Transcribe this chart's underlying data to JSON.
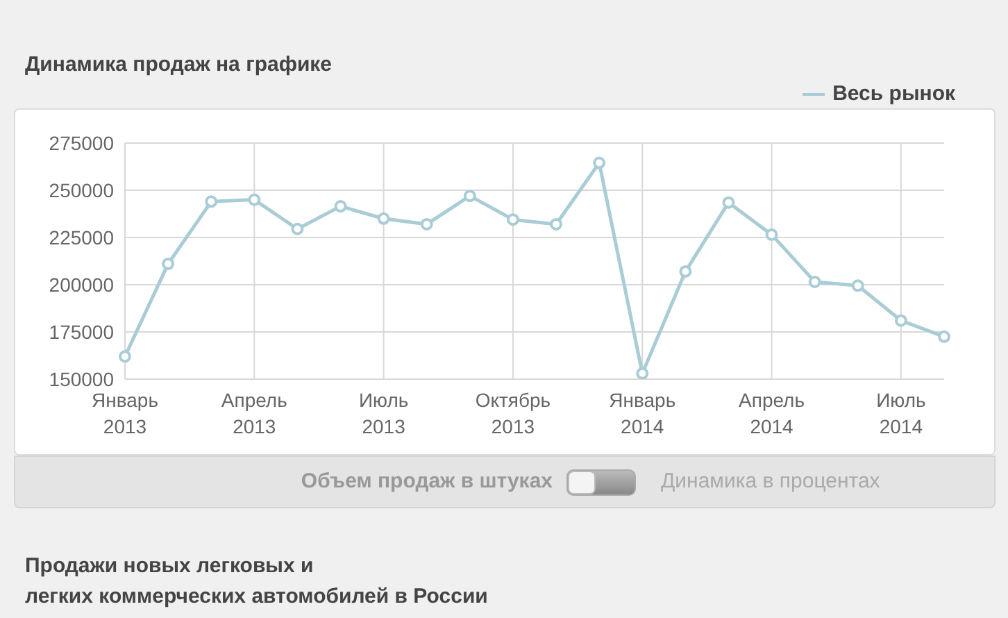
{
  "chart_data": {
    "type": "line",
    "title": "Динамика продаж на графике",
    "categories": [
      "Январь\n2013",
      null,
      null,
      "Апрель\n2013",
      null,
      null,
      "Июль\n2013",
      null,
      null,
      "Октябрь\n2013",
      null,
      null,
      "Январь\n2014",
      null,
      null,
      "Апрель\n2014",
      null,
      null,
      "Июль\n2014",
      null
    ],
    "series": [
      {
        "name": "Весь рынок",
        "color": "#a9ccd6",
        "values": [
          162000,
          211000,
          244000,
          245000,
          229500,
          241500,
          235000,
          232000,
          247000,
          234500,
          232000,
          264500,
          153000,
          207000,
          243500,
          226500,
          201500,
          199500,
          181000,
          172500
        ]
      }
    ],
    "ylim": [
      150000,
      275000
    ],
    "yticks": [
      150000,
      175000,
      200000,
      225000,
      250000,
      275000
    ],
    "grid": true,
    "legend": "top right",
    "marker": "circle",
    "line_style": "solid",
    "annotations": [
      "Объем продаж в штуках",
      "Динамика в процентах",
      "Продажи новых легковых и\nлегких коммерческих автомобилей в России"
    ]
  }
}
